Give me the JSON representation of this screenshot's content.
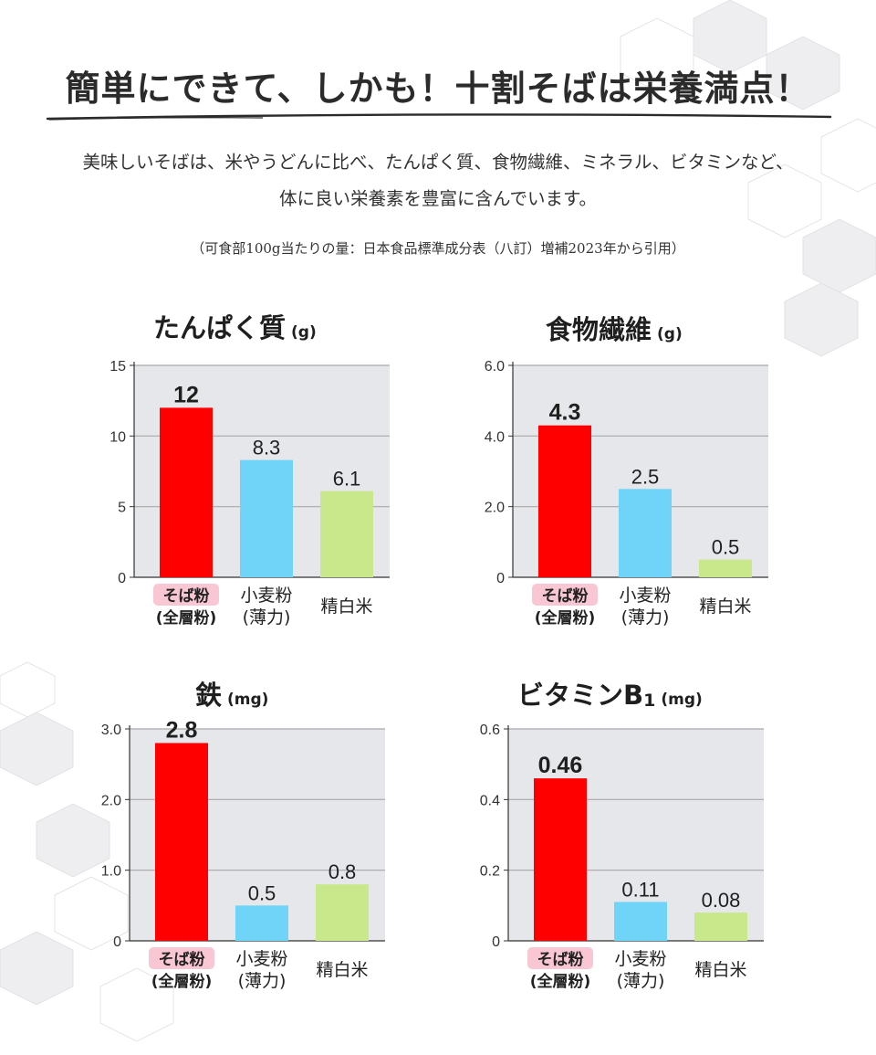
{
  "heading": "簡単にできて、しかも！十割そばは栄養満点！",
  "lead_line1": "美味しいそばは、米やうどんに比べ、たんぱく質、食物繊維、ミネラル、ビタミンなど、",
  "lead_line2": "体に良い栄養素を豊富に含んでいます。",
  "source_note": "（可食部100g当たりの量：日本食品標準成分表（八訂）増補2023年から引用）",
  "colors": {
    "soba": "#ff0000",
    "wheat": "#6fd4f7",
    "rice": "#c9e88b",
    "plot_bg": "#e6e7ea",
    "highlight": "#f9c7d4"
  },
  "chart_data": [
    {
      "type": "bar",
      "title": "たんぱく質",
      "unit": "(g)",
      "categories": [
        [
          "そば粉",
          "(全層粉)"
        ],
        [
          "小麦粉",
          "(薄力)"
        ],
        [
          "精白米"
        ]
      ],
      "values": [
        12,
        8.3,
        6.1
      ],
      "value_labels": [
        "12",
        "8.3",
        "6.1"
      ],
      "ylim": [
        0,
        15
      ],
      "yticks": [
        "0",
        "5",
        "10",
        "15"
      ],
      "ytick_values": [
        0,
        5,
        10,
        15
      ],
      "grid": true
    },
    {
      "type": "bar",
      "title": "食物繊維",
      "unit": "(g)",
      "categories": [
        [
          "そば粉",
          "(全層粉)"
        ],
        [
          "小麦粉",
          "(薄力)"
        ],
        [
          "精白米"
        ]
      ],
      "values": [
        4.3,
        2.5,
        0.5
      ],
      "value_labels": [
        "4.3",
        "2.5",
        "0.5"
      ],
      "ylim": [
        0,
        6
      ],
      "yticks": [
        "0",
        "2.0",
        "4.0",
        "6.0"
      ],
      "ytick_values": [
        0,
        2,
        4,
        6
      ],
      "grid": true
    },
    {
      "type": "bar",
      "title": "鉄",
      "unit": "(mg)",
      "categories": [
        [
          "そば粉",
          "(全層粉)"
        ],
        [
          "小麦粉",
          "(薄力)"
        ],
        [
          "精白米"
        ]
      ],
      "values": [
        2.8,
        0.5,
        0.8
      ],
      "value_labels": [
        "2.8",
        "0.5",
        "0.8"
      ],
      "ylim": [
        0,
        3
      ],
      "yticks": [
        "0",
        "1.0",
        "2.0",
        "3.0"
      ],
      "ytick_values": [
        0,
        1,
        2,
        3
      ],
      "grid": true
    },
    {
      "type": "bar",
      "title": "ビタミンB",
      "title_sub": "1",
      "unit": "(mg)",
      "categories": [
        [
          "そば粉",
          "(全層粉)"
        ],
        [
          "小麦粉",
          "(薄力)"
        ],
        [
          "精白米"
        ]
      ],
      "values": [
        0.46,
        0.11,
        0.08
      ],
      "value_labels": [
        "0.46",
        "0.11",
        "0.08"
      ],
      "ylim": [
        0,
        0.6
      ],
      "yticks": [
        "0",
        "0.2",
        "0.4",
        "0.6"
      ],
      "ytick_values": [
        0,
        0.2,
        0.4,
        0.6
      ],
      "grid": true
    }
  ]
}
